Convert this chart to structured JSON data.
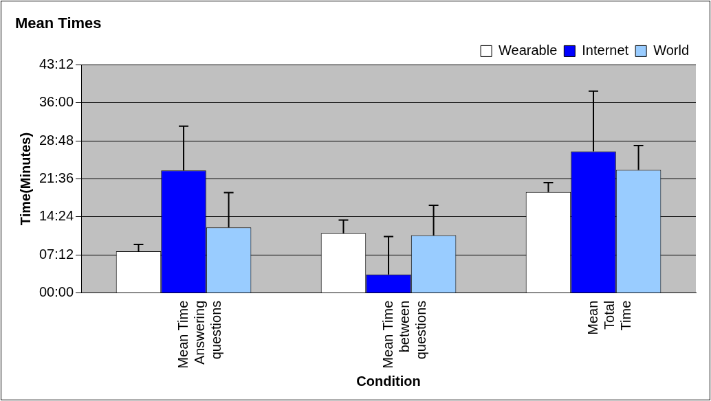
{
  "chart_data": {
    "type": "bar",
    "title": "Mean Times",
    "xlabel": "Condition",
    "ylabel": "Time(Minutes)",
    "categories": [
      "Mean Time\nAnswering\nquestions",
      "Mean Time\nbetween\nquestions",
      "Mean\nTotal\nTime"
    ],
    "series": [
      {
        "name": "Wearable",
        "color": "#ffffff",
        "values": [
          7.9,
          11.3,
          19.1
        ],
        "errors": [
          [
            7.9,
            9.2
          ],
          [
            11.3,
            13.8
          ],
          [
            19.1,
            20.9
          ]
        ]
      },
      {
        "name": "Internet",
        "color": "#0000ff",
        "values": [
          23.2,
          3.5,
          26.8
        ],
        "errors": [
          [
            23.2,
            31.6
          ],
          [
            3.5,
            10.7
          ],
          [
            26.8,
            38.2
          ]
        ]
      },
      {
        "name": "World",
        "color": "#99ccff",
        "values": [
          12.4,
          10.9,
          23.3
        ],
        "errors": [
          [
            12.4,
            19.0
          ],
          [
            10.9,
            16.6
          ],
          [
            23.3,
            27.9
          ]
        ]
      }
    ],
    "ylim": [
      0,
      43.2
    ],
    "yticks": [
      {
        "value": 0,
        "label": "00:00"
      },
      {
        "value": 7.2,
        "label": "07:12"
      },
      {
        "value": 14.4,
        "label": "14:24"
      },
      {
        "value": 21.6,
        "label": "21:36"
      },
      {
        "value": 28.8,
        "label": "28:48"
      },
      {
        "value": 36,
        "label": "36:00"
      },
      {
        "value": 43.2,
        "label": "43:12"
      }
    ],
    "grid": "y",
    "legend": "top right"
  }
}
